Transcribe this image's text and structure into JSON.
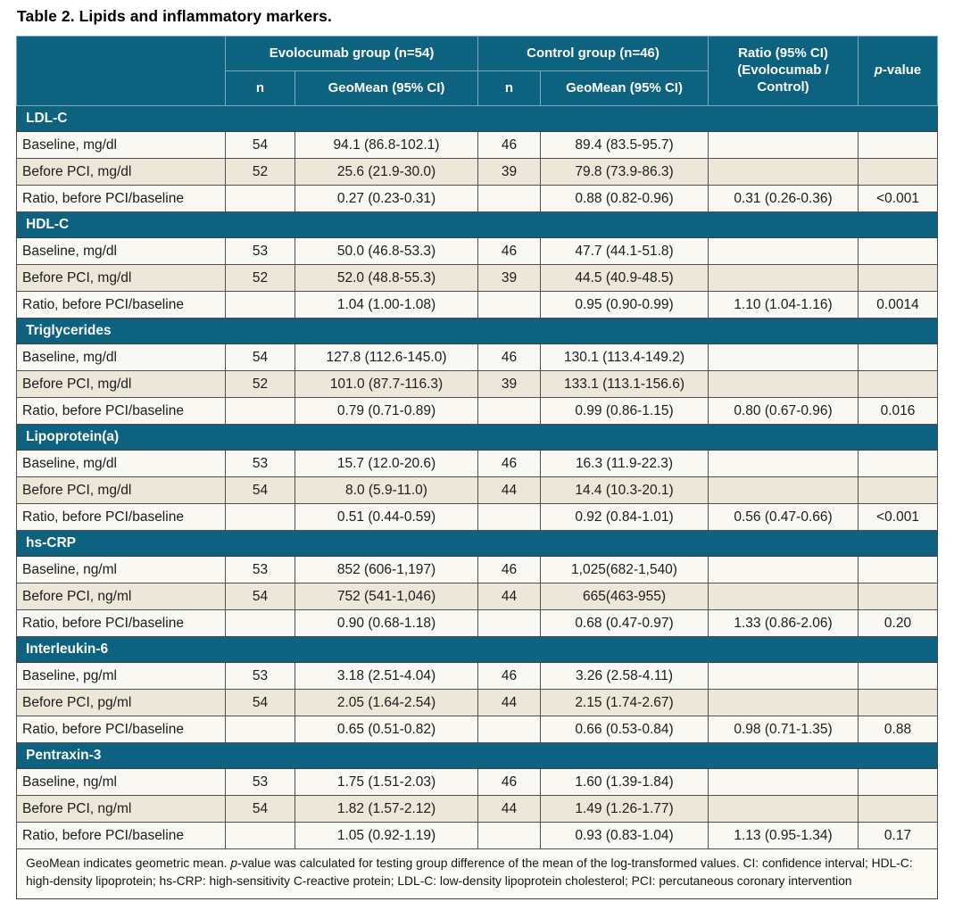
{
  "title": "Table 2. Lipids and inflammatory markers.",
  "colors": {
    "header_teal": "#0d6280",
    "row_beige": "#ece7d8",
    "row_white": "#f9f8f2",
    "grid_line": "#4f5052",
    "header_divider": "#7ea9bb"
  },
  "table": {
    "header": {
      "evolocumab_group": "Evolocumab group (n=54)",
      "control_group": "Control group (n=46)",
      "ratio_line1": "Ratio (95% CI)",
      "ratio_line2": "(Evolocumab / Control)",
      "p_prefix": "p",
      "p_suffix": "-value",
      "n": "n",
      "geomean": "GeoMean (95% CI)"
    },
    "sections": [
      {
        "name": "LDL-C",
        "rows": [
          {
            "label": "Baseline, mg/dl",
            "evo_n": "54",
            "evo_geomean": "94.1 (86.8-102.1)",
            "ctrl_n": "46",
            "ctrl_geomean": "89.4 (83.5-95.7)",
            "ratio": "",
            "p": ""
          },
          {
            "label": "Before PCI, mg/dl",
            "evo_n": "52",
            "evo_geomean": "25.6 (21.9-30.0)",
            "ctrl_n": "39",
            "ctrl_geomean": "79.8 (73.9-86.3)",
            "ratio": "",
            "p": ""
          },
          {
            "label": "Ratio, before PCI/baseline",
            "evo_n": "",
            "evo_geomean": "0.27 (0.23-0.31)",
            "ctrl_n": "",
            "ctrl_geomean": "0.88 (0.82-0.96)",
            "ratio": "0.31 (0.26-0.36)",
            "p": "<0.001"
          }
        ]
      },
      {
        "name": "HDL-C",
        "rows": [
          {
            "label": "Baseline, mg/dl",
            "evo_n": "53",
            "evo_geomean": "50.0 (46.8-53.3)",
            "ctrl_n": "46",
            "ctrl_geomean": "47.7 (44.1-51.8)",
            "ratio": "",
            "p": ""
          },
          {
            "label": "Before PCI, mg/dl",
            "evo_n": "52",
            "evo_geomean": "52.0 (48.8-55.3)",
            "ctrl_n": "39",
            "ctrl_geomean": "44.5 (40.9-48.5)",
            "ratio": "",
            "p": ""
          },
          {
            "label": "Ratio, before PCI/baseline",
            "evo_n": "",
            "evo_geomean": "1.04 (1.00-1.08)",
            "ctrl_n": "",
            "ctrl_geomean": "0.95 (0.90-0.99)",
            "ratio": "1.10 (1.04-1.16)",
            "p": "0.0014"
          }
        ]
      },
      {
        "name": "Triglycerides",
        "rows": [
          {
            "label": "Baseline, mg/dl",
            "evo_n": "54",
            "evo_geomean": "127.8 (112.6-145.0)",
            "ctrl_n": "46",
            "ctrl_geomean": "130.1 (113.4-149.2)",
            "ratio": "",
            "p": ""
          },
          {
            "label": "Before PCI, mg/dl",
            "evo_n": "52",
            "evo_geomean": "101.0 (87.7-116.3)",
            "ctrl_n": "39",
            "ctrl_geomean": "133.1 (113.1-156.6)",
            "ratio": "",
            "p": ""
          },
          {
            "label": "Ratio, before PCI/baseline",
            "evo_n": "",
            "evo_geomean": "0.79 (0.71-0.89)",
            "ctrl_n": "",
            "ctrl_geomean": "0.99 (0.86-1.15)",
            "ratio": "0.80 (0.67-0.96)",
            "p": "0.016"
          }
        ]
      },
      {
        "name": "Lipoprotein(a)",
        "rows": [
          {
            "label": "Baseline, mg/dl",
            "evo_n": "53",
            "evo_geomean": "15.7 (12.0-20.6)",
            "ctrl_n": "46",
            "ctrl_geomean": "16.3 (11.9-22.3)",
            "ratio": "",
            "p": ""
          },
          {
            "label": "Before PCI, mg/dl",
            "evo_n": "54",
            "evo_geomean": "8.0 (5.9-11.0)",
            "ctrl_n": "44",
            "ctrl_geomean": "14.4 (10.3-20.1)",
            "ratio": "",
            "p": ""
          },
          {
            "label": "Ratio, before PCI/baseline",
            "evo_n": "",
            "evo_geomean": "0.51 (0.44-0.59)",
            "ctrl_n": "",
            "ctrl_geomean": "0.92 (0.84-1.01)",
            "ratio": "0.56 (0.47-0.66)",
            "p": "<0.001"
          }
        ]
      },
      {
        "name": "hs-CRP",
        "rows": [
          {
            "label": "Baseline, ng/ml",
            "evo_n": "53",
            "evo_geomean": "852 (606-1,197)",
            "ctrl_n": "46",
            "ctrl_geomean": "1,025(682-1,540)",
            "ratio": "",
            "p": ""
          },
          {
            "label": "Before PCI, ng/ml",
            "evo_n": "54",
            "evo_geomean": "752 (541-1,046)",
            "ctrl_n": "44",
            "ctrl_geomean": "665(463-955)",
            "ratio": "",
            "p": ""
          },
          {
            "label": "Ratio, before PCI/baseline",
            "evo_n": "",
            "evo_geomean": "0.90 (0.68-1.18)",
            "ctrl_n": "",
            "ctrl_geomean": "0.68 (0.47-0.97)",
            "ratio": "1.33 (0.86-2.06)",
            "p": "0.20"
          }
        ]
      },
      {
        "name": "Interleukin-6",
        "rows": [
          {
            "label": "Baseline, pg/ml",
            "evo_n": "53",
            "evo_geomean": "3.18 (2.51-4.04)",
            "ctrl_n": "46",
            "ctrl_geomean": "3.26 (2.58-4.11)",
            "ratio": "",
            "p": ""
          },
          {
            "label": "Before PCI, pg/ml",
            "evo_n": "54",
            "evo_geomean": "2.05 (1.64-2.54)",
            "ctrl_n": "44",
            "ctrl_geomean": "2.15 (1.74-2.67)",
            "ratio": "",
            "p": ""
          },
          {
            "label": "Ratio, before PCI/baseline",
            "evo_n": "",
            "evo_geomean": "0.65 (0.51-0.82)",
            "ctrl_n": "",
            "ctrl_geomean": "0.66 (0.53-0.84)",
            "ratio": "0.98 (0.71-1.35)",
            "p": "0.88"
          }
        ]
      },
      {
        "name": "Pentraxin-3",
        "rows": [
          {
            "label": "Baseline, ng/ml",
            "evo_n": "53",
            "evo_geomean": "1.75 (1.51-2.03)",
            "ctrl_n": "46",
            "ctrl_geomean": "1.60 (1.39-1.84)",
            "ratio": "",
            "p": ""
          },
          {
            "label": "Before PCI, ng/ml",
            "evo_n": "54",
            "evo_geomean": "1.82 (1.57-2.12)",
            "ctrl_n": "44",
            "ctrl_geomean": "1.49 (1.26-1.77)",
            "ratio": "",
            "p": ""
          },
          {
            "label": "Ratio, before PCI/baseline",
            "evo_n": "",
            "evo_geomean": "1.05 (0.92-1.19)",
            "ctrl_n": "",
            "ctrl_geomean": "0.93 (0.83-1.04)",
            "ratio": "1.13 (0.95-1.34)",
            "p": "0.17"
          }
        ]
      }
    ],
    "footnote": {
      "part1": "GeoMean indicates geometric mean. ",
      "italic": "p",
      "part2": "-value was calculated for testing group difference of the mean of the log-transformed values. CI: confidence interval; HDL-C: high-density lipoprotein; hs-CRP: high-sensitivity C-reactive protein; LDL-C: low-density lipoprotein cholesterol; PCI: percutaneous coronary intervention"
    }
  }
}
